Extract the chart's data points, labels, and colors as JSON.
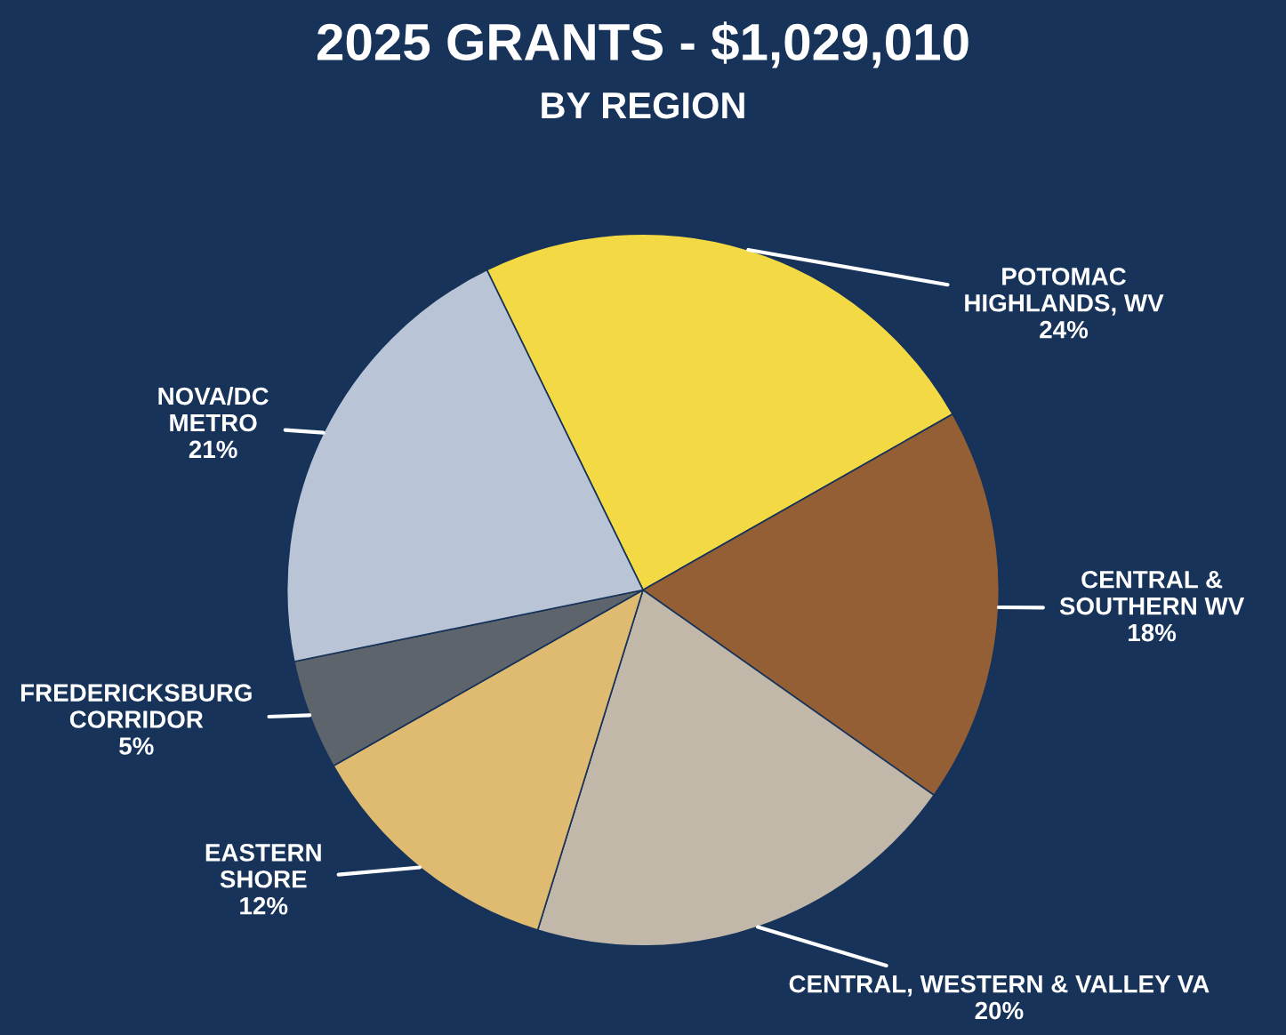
{
  "chart_data": {
    "type": "pie",
    "title": "2025 GRANTS - $1,029,010",
    "subtitle": "BY REGION",
    "categories": [
      "POTOMAC\nHIGHLANDS, WV",
      "CENTRAL &\nSOUTHERN WV",
      "CENTRAL, WESTERN & VALLEY VA",
      "EASTERN\nSHORE",
      "FREDERICKSBURG\nCORRIDOR",
      "NOVA/DC\nMETRO"
    ],
    "values": [
      24,
      18,
      20,
      12,
      5,
      21
    ],
    "value_labels": [
      "24%",
      "18%",
      "20%",
      "12%",
      "5%",
      "21%"
    ],
    "colors": [
      "#f3da45",
      "#955f35",
      "#c1b8aa",
      "#dfbb72",
      "#5d646b",
      "#b9c5d6"
    ],
    "legend": false
  }
}
